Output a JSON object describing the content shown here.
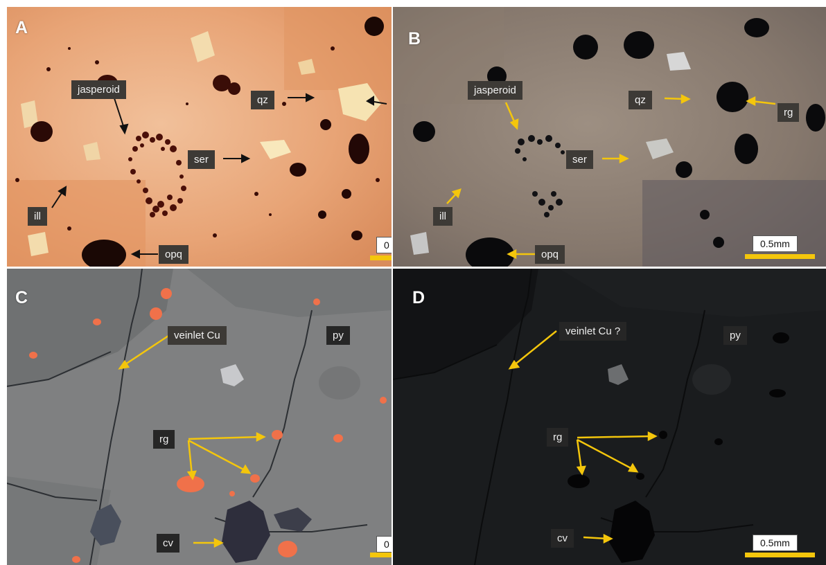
{
  "panels": [
    {
      "letter": "A",
      "labels": {
        "jasperoid": "jasperoid",
        "qz": "qz",
        "ser": "ser",
        "ill": "ill",
        "opq": "opq"
      },
      "scale": "0"
    },
    {
      "letter": "B",
      "labels": {
        "jasperoid": "jasperoid",
        "qz": "qz",
        "rg": "rg",
        "ser": "ser",
        "ill": "ill",
        "opq": "opq"
      },
      "scale": "0.5mm"
    },
    {
      "letter": "C",
      "labels": {
        "veinlet": "veinlet Cu",
        "py": "py",
        "rg": "rg",
        "cv": "cv"
      },
      "scale": "0"
    },
    {
      "letter": "D",
      "labels": {
        "veinlet": "veinlet Cu ?",
        "py": "py",
        "rg": "rg",
        "cv": "cv"
      },
      "scale": "0.5mm"
    }
  ],
  "colors": {
    "arrow_black": "#111111",
    "arrow_yellow": "#f4c60c",
    "scalebar": "#f4c60c"
  }
}
